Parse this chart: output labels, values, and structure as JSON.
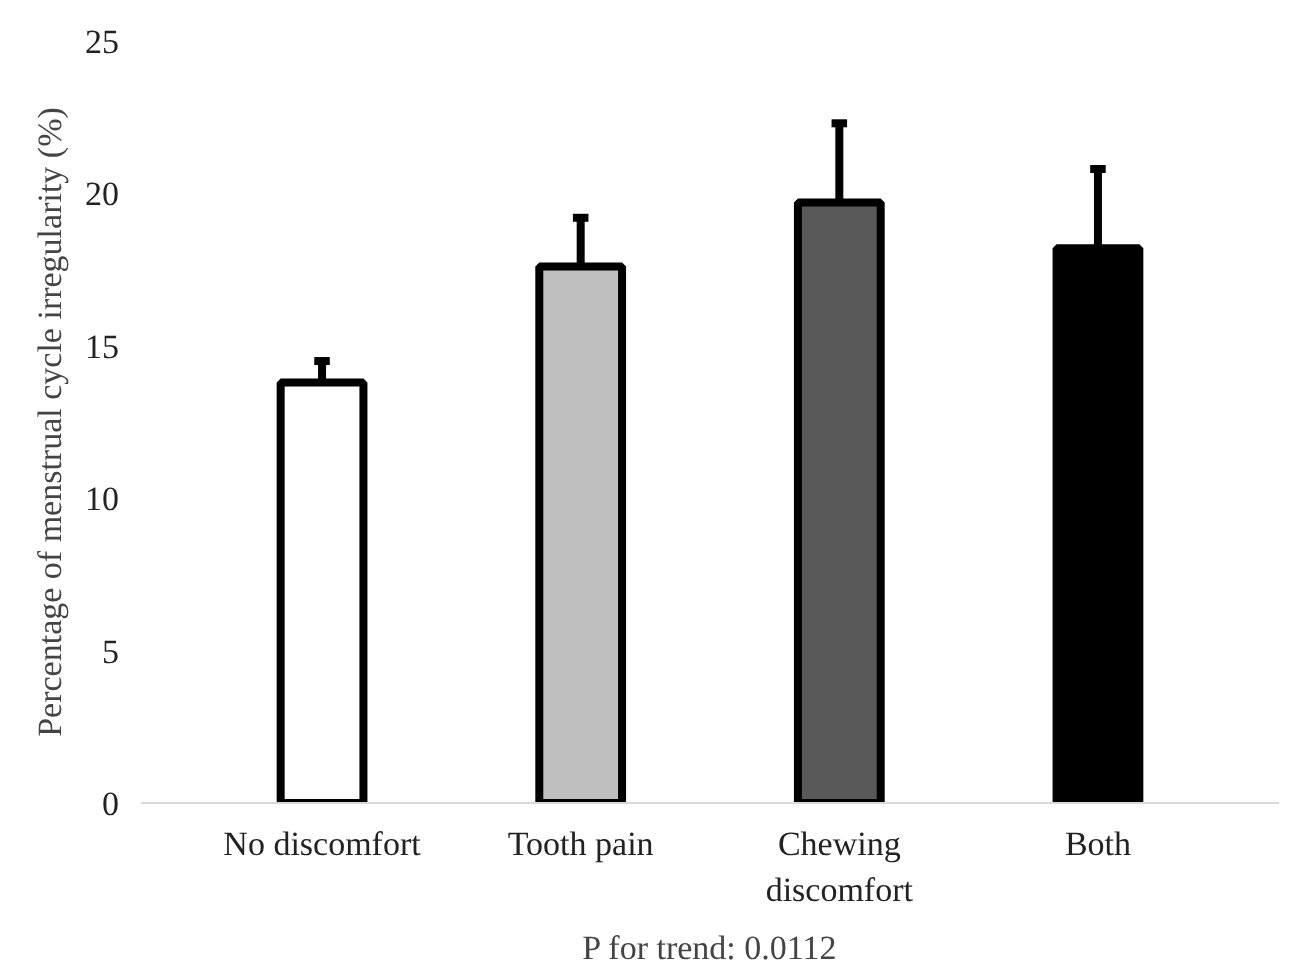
{
  "chart_data": {
    "type": "bar",
    "ylabel": "Percentage of menstrual cycle irregularity (%)",
    "categories": [
      "No discomfort",
      "Tooth pain",
      "Chewing\ndiscomfort",
      "Both"
    ],
    "values": [
      13.8,
      17.6,
      19.7,
      18.2
    ],
    "colors": [
      "#ffffff",
      "#bfbfbf",
      "#595959",
      "#000000"
    ],
    "errors": [
      [
        13.8,
        14.5
      ],
      [
        17.6,
        19.2
      ],
      [
        19.7,
        22.3
      ],
      [
        18.2,
        20.8
      ]
    ],
    "ylim": [
      0,
      25
    ],
    "yticks": [
      0,
      5,
      10,
      15,
      20,
      25
    ],
    "grid": false,
    "annotations": [
      "P for trend: 0.0112"
    ]
  }
}
